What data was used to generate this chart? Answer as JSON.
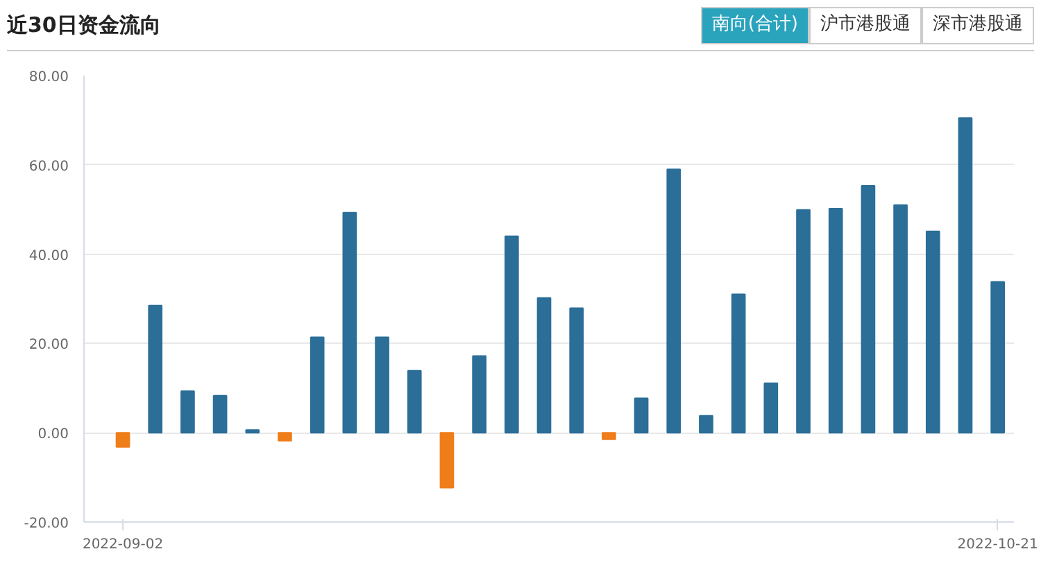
{
  "chart_data": {
    "type": "bar",
    "title": "近30日资金流向",
    "annotations": [
      "南向(合计)",
      "沪市港股通",
      "深市港股通"
    ],
    "categories": [
      "2022-09-02",
      null,
      null,
      null,
      null,
      null,
      null,
      null,
      null,
      null,
      null,
      null,
      null,
      null,
      null,
      null,
      null,
      null,
      null,
      null,
      null,
      null,
      null,
      null,
      null,
      null,
      null,
      "2022-10-21"
    ],
    "values": [
      -3.2,
      28.5,
      9.3,
      8.3,
      0.6,
      -1.8,
      21.4,
      49.3,
      21.4,
      13.9,
      -12.3,
      17.2,
      44.0,
      30.2,
      27.9,
      -1.5,
      7.7,
      59.0,
      3.8,
      31.0,
      11.1,
      49.9,
      50.2,
      55.3,
      51.0,
      45.1,
      70.5,
      33.8
    ],
    "colors": [
      "#ef7d1a",
      "#2b6e98",
      "#2b6e98",
      "#2b6e98",
      "#2b6e98",
      "#ef7d1a",
      "#2b6e98",
      "#2b6e98",
      "#2b6e98",
      "#2b6e98",
      "#ef7d1a",
      "#2b6e98",
      "#2b6e98",
      "#2b6e98",
      "#2b6e98",
      "#ef7d1a",
      "#2b6e98",
      "#2b6e98",
      "#2b6e98",
      "#2b6e98",
      "#2b6e98",
      "#2b6e98",
      "#2b6e98",
      "#2b6e98",
      "#2b6e98",
      "#2b6e98",
      "#2b6e98",
      "#2b6e98"
    ],
    "ylim": [
      -20,
      80
    ],
    "yticks": [
      {
        "value": -20,
        "label": "-20.00"
      },
      {
        "value": 0,
        "label": "0.00"
      },
      {
        "value": 20,
        "label": "20.00"
      },
      {
        "value": 40,
        "label": "40.00"
      },
      {
        "value": 60,
        "label": "60.00"
      },
      {
        "value": 80,
        "label": "80.00"
      }
    ],
    "grid": "y"
  }
}
